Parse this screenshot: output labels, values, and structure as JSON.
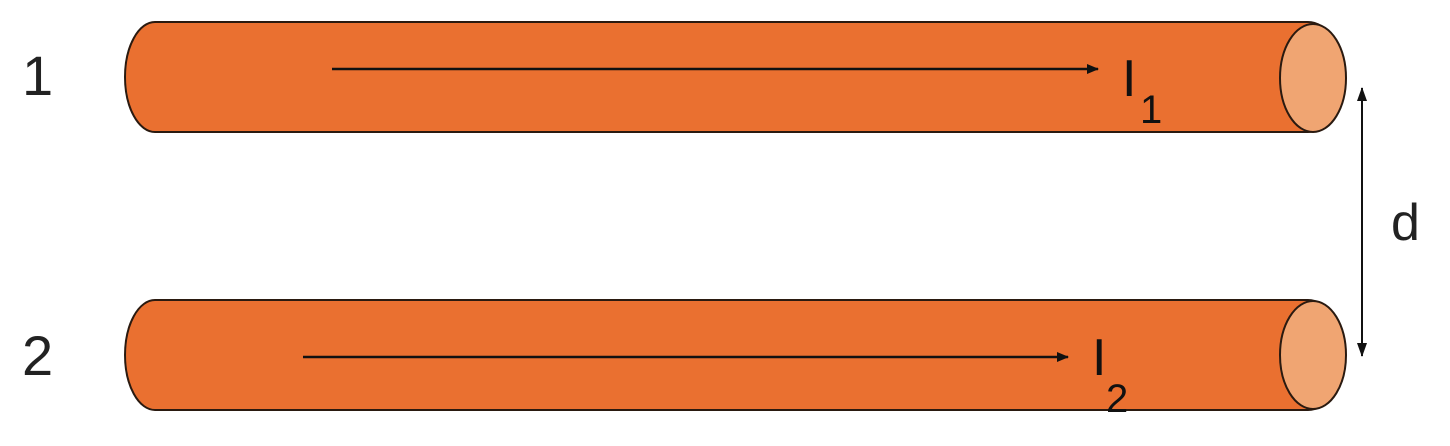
{
  "wires": [
    {
      "number": "1",
      "current_symbol": "I",
      "current_subscript": "1"
    },
    {
      "number": "2",
      "current_symbol": "I",
      "current_subscript": "2"
    }
  ],
  "separation_label": "d",
  "colors": {
    "wire_body": "#ea7030",
    "wire_end": "#f0a572",
    "outline": "#2a1a10",
    "arrow": "#111111",
    "text": "#222222"
  }
}
